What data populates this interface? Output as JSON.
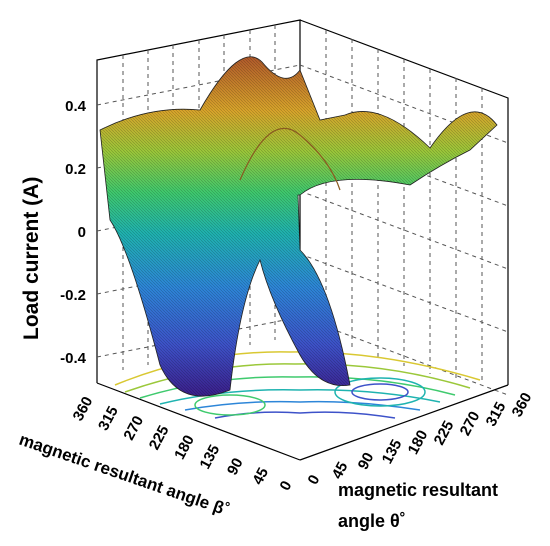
{
  "chart_data": {
    "type": "surface",
    "zlabel": "Load current (A)",
    "ylabel_beta": "magnetic resultant angle β˚",
    "xlabel_theta_line1": "magnetic resultant",
    "xlabel_theta_line2": "angle θ˚",
    "z_ticks": [
      "0.4",
      "0.2",
      "0",
      "-0.2",
      "-0.4"
    ],
    "z_tick_values": [
      0.4,
      0.2,
      0,
      -0.2,
      -0.4
    ],
    "beta_ticks": [
      "360",
      "315",
      "270",
      "225",
      "180",
      "135",
      "90",
      "45",
      "0"
    ],
    "theta_ticks": [
      "0",
      "45",
      "90",
      "135",
      "180",
      "225",
      "270",
      "315",
      "360"
    ],
    "zlim": [
      -0.5,
      0.5
    ],
    "beta_range": [
      0,
      360
    ],
    "theta_range": [
      0,
      360
    ],
    "colormap": [
      "#3b1e8a",
      "#3d52c9",
      "#2d86d8",
      "#1fb3b0",
      "#3fca6e",
      "#9bc83a",
      "#d9a52b",
      "#c97b2b",
      "#b15a2b"
    ],
    "grid": true,
    "contour_projection": true
  }
}
